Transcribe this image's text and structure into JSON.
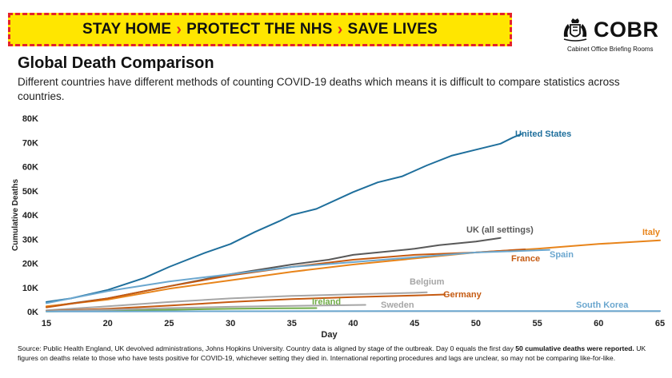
{
  "banner": {
    "part1": "STAY HOME",
    "part2": "PROTECT THE NHS",
    "part3": "SAVE LIVES",
    "separator": "›"
  },
  "logo": {
    "name": "COBR",
    "subtitle": "Cabinet Office Briefing Rooms",
    "icon": "royal-crest-icon"
  },
  "header": {
    "title": "Global Death Comparison",
    "subtitle": "Different countries have different methods of counting COVID-19 deaths which means it is difficult to compare statistics across countries."
  },
  "source": {
    "text1": "Source: Public Health England, UK devolved administrations, Johns Hopkins University. Country data is aligned by stage of the outbreak. Day 0 equals the first day ",
    "bold": "50 cumulative deaths were reported.",
    "text2": " UK figures on deaths relate to those who have tests positive for COVID-19, whichever setting they died in. International reporting procedures and lags are unclear, so may not be comparing like-for-like."
  },
  "chart_data": {
    "type": "line",
    "title": "",
    "xlabel": "Day",
    "ylabel": "Cumulative Deaths",
    "xlim": [
      15,
      65
    ],
    "ylim": [
      0,
      80000
    ],
    "x_ticks": [
      15,
      20,
      25,
      30,
      35,
      40,
      45,
      50,
      55,
      60,
      65
    ],
    "y_ticks": [
      0,
      10000,
      20000,
      30000,
      40000,
      50000,
      60000,
      70000,
      80000
    ],
    "y_tick_labels": [
      "0K",
      "10K",
      "20K",
      "30K",
      "40K",
      "50K",
      "60K",
      "70K",
      "80K"
    ],
    "grid": false,
    "series": [
      {
        "name": "United States",
        "color": "#1f6f9c",
        "points": [
          [
            15,
            4000
          ],
          [
            17,
            5500
          ],
          [
            20,
            9000
          ],
          [
            23,
            14000
          ],
          [
            25,
            18500
          ],
          [
            28,
            24500
          ],
          [
            30,
            28000
          ],
          [
            32,
            33000
          ],
          [
            34,
            37500
          ],
          [
            35,
            40000
          ],
          [
            37,
            42500
          ],
          [
            40,
            49500
          ],
          [
            42,
            53500
          ],
          [
            44,
            56000
          ],
          [
            46,
            60500
          ],
          [
            48,
            64500
          ],
          [
            50,
            67000
          ],
          [
            52,
            69500
          ],
          [
            53,
            72000
          ],
          [
            53.7,
            73500
          ]
        ]
      },
      {
        "name": "UK (all settings)",
        "color": "#595959",
        "points": [
          [
            15,
            2000
          ],
          [
            20,
            5500
          ],
          [
            25,
            10500
          ],
          [
            30,
            15500
          ],
          [
            35,
            19500
          ],
          [
            38,
            21500
          ],
          [
            40,
            23500
          ],
          [
            42,
            24500
          ],
          [
            45,
            26000
          ],
          [
            47,
            27500
          ],
          [
            50,
            29000
          ],
          [
            52,
            30500
          ]
        ]
      },
      {
        "name": "Italy",
        "color": "#e8841a",
        "points": [
          [
            15,
            2200
          ],
          [
            20,
            5000
          ],
          [
            25,
            9500
          ],
          [
            30,
            13000
          ],
          [
            35,
            16500
          ],
          [
            40,
            19500
          ],
          [
            45,
            22000
          ],
          [
            50,
            24500
          ],
          [
            55,
            26000
          ],
          [
            60,
            28000
          ],
          [
            65,
            29500
          ]
        ]
      },
      {
        "name": "France",
        "color": "#c55a11",
        "points": [
          [
            15,
            1800
          ],
          [
            20,
            5500
          ],
          [
            25,
            10500
          ],
          [
            30,
            15000
          ],
          [
            35,
            18500
          ],
          [
            40,
            21500
          ],
          [
            45,
            23500
          ],
          [
            50,
            24500
          ],
          [
            53,
            25500
          ],
          [
            54,
            25800
          ]
        ]
      },
      {
        "name": "Spain",
        "color": "#6ba7cf",
        "points": [
          [
            15,
            3500
          ],
          [
            20,
            8500
          ],
          [
            25,
            12500
          ],
          [
            30,
            15500
          ],
          [
            35,
            18500
          ],
          [
            40,
            20500
          ],
          [
            45,
            22500
          ],
          [
            50,
            24500
          ],
          [
            53,
            25000
          ],
          [
            56,
            25600
          ]
        ]
      },
      {
        "name": "Belgium",
        "color": "#a6a6a6",
        "points": [
          [
            15,
            600
          ],
          [
            20,
            2200
          ],
          [
            25,
            4000
          ],
          [
            30,
            5500
          ],
          [
            35,
            6500
          ],
          [
            40,
            7200
          ],
          [
            45,
            7800
          ],
          [
            46,
            8000
          ]
        ]
      },
      {
        "name": "Germany",
        "color": "#c55a11",
        "points": [
          [
            15,
            300
          ],
          [
            20,
            1200
          ],
          [
            25,
            2500
          ],
          [
            30,
            4000
          ],
          [
            35,
            5200
          ],
          [
            40,
            6000
          ],
          [
            45,
            6700
          ],
          [
            47.5,
            7100
          ]
        ]
      },
      {
        "name": "Ireland",
        "color": "#70ad47",
        "points": [
          [
            15,
            100
          ],
          [
            20,
            400
          ],
          [
            25,
            800
          ],
          [
            30,
            1200
          ],
          [
            34,
            1400
          ],
          [
            37,
            1500
          ]
        ]
      },
      {
        "name": "Sweden",
        "color": "#a6a6a6",
        "points": [
          [
            15,
            200
          ],
          [
            20,
            800
          ],
          [
            25,
            1500
          ],
          [
            30,
            2000
          ],
          [
            35,
            2400
          ],
          [
            38,
            2600
          ],
          [
            41,
            2800
          ]
        ]
      },
      {
        "name": "South Korea",
        "color": "#6ba7cf",
        "points": [
          [
            15,
            80
          ],
          [
            30,
            150
          ],
          [
            45,
            230
          ],
          [
            65,
            260
          ]
        ]
      }
    ]
  }
}
